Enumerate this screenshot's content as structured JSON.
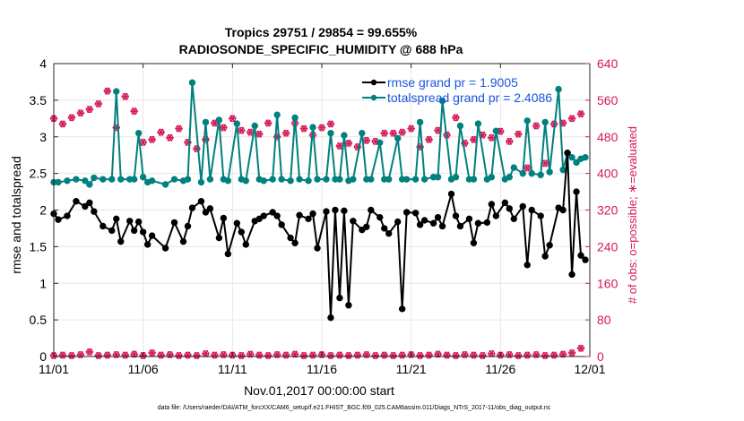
{
  "chart_data": {
    "type": "line",
    "title_line1": "Tropics 29751 / 29854 = 99.655%",
    "title_line2": "RADIOSONDE_SPECIFIC_HUMIDITY @ 688 hPa",
    "xlabel": "Nov.01,2017 00:00:00 start",
    "ylabel_left": "rmse and totalspread",
    "ylabel_right": "# of obs: o=possible; ∗=evaluated",
    "footer": "data file: /Users/raeder/DAI/ATM_forcXX/CAM6_setup/f.e21.FHIST_BGC.f09_025.CAM6assim.011/Diags_NTrS_2017-11/obs_diag_output.nc",
    "x_ticks": [
      "11/01",
      "11/06",
      "11/11",
      "11/16",
      "11/21",
      "11/26",
      "12/01"
    ],
    "y_left_ticks": [
      "0",
      "0.5",
      "1",
      "1.5",
      "2",
      "2.5",
      "3",
      "3.5",
      "4"
    ],
    "y_right_ticks": [
      "0",
      "80",
      "160",
      "240",
      "320",
      "400",
      "480",
      "560",
      "640"
    ],
    "ylim_left": [
      0,
      4
    ],
    "ylim_right": [
      0,
      640
    ],
    "xlim_days": [
      0,
      30
    ],
    "colors": {
      "rmse": "#000000",
      "spread": "#00807f",
      "obs": "#d6185a",
      "legend_text": "#1a56db"
    },
    "legend": [
      {
        "key": "rmse",
        "label": "rmse grand pr = 1.9005"
      },
      {
        "key": "spread",
        "label": "totalspread grand pr = 2.4086"
      }
    ],
    "series": [
      {
        "name": "rmse",
        "x": [
          0.0,
          0.25,
          0.75,
          1.25,
          1.75,
          2.0,
          2.25,
          2.75,
          3.25,
          3.5,
          3.75,
          4.25,
          4.5,
          4.75,
          5.0,
          5.25,
          5.5,
          6.25,
          6.75,
          7.25,
          7.5,
          7.75,
          8.25,
          8.5,
          8.75,
          9.25,
          9.5,
          9.75,
          10.25,
          10.5,
          10.75,
          11.25,
          11.5,
          11.75,
          12.25,
          12.5,
          12.75,
          13.25,
          13.5,
          13.75,
          14.25,
          14.5,
          14.75,
          15.25,
          15.5,
          15.75,
          16.0,
          16.25,
          16.5,
          16.75,
          17.25,
          17.5,
          17.75,
          18.25,
          18.5,
          18.75,
          19.25,
          19.5,
          19.75,
          20.25,
          20.5,
          20.75,
          21.25,
          21.5,
          21.75,
          22.25,
          22.5,
          22.75,
          23.25,
          23.5,
          23.75,
          24.25,
          24.5,
          24.75,
          25.25,
          25.5,
          25.75,
          26.25,
          26.5,
          26.75,
          27.25,
          27.5,
          27.75,
          28.25,
          28.5,
          28.75,
          29.0,
          29.25,
          29.5,
          29.75
        ],
        "values": [
          1.95,
          1.87,
          1.92,
          2.12,
          2.05,
          2.1,
          1.98,
          1.78,
          1.72,
          1.88,
          1.57,
          1.85,
          1.72,
          1.84,
          1.7,
          1.53,
          1.65,
          1.48,
          1.83,
          1.57,
          1.78,
          2.03,
          2.12,
          1.97,
          2.02,
          1.62,
          1.89,
          1.4,
          1.82,
          1.7,
          1.53,
          1.85,
          1.88,
          1.92,
          1.97,
          1.92,
          1.8,
          1.62,
          1.55,
          1.93,
          1.88,
          1.95,
          1.48,
          1.98,
          0.53,
          2.0,
          0.8,
          1.99,
          0.7,
          1.85,
          1.73,
          1.77,
          2.0,
          1.9,
          1.75,
          1.68,
          1.84,
          0.65,
          1.97,
          1.96,
          1.8,
          1.86,
          1.82,
          1.9,
          1.78,
          2.22,
          1.92,
          1.78,
          1.88,
          1.55,
          1.82,
          1.83,
          2.08,
          1.92,
          2.1,
          2.02,
          1.88,
          2.05,
          1.25,
          2.0,
          1.92,
          1.37,
          1.52,
          2.03,
          2.0,
          2.78,
          1.12,
          2.25,
          1.38,
          1.32
        ]
      },
      {
        "name": "totalspread",
        "x": [
          0.0,
          0.25,
          0.75,
          1.25,
          1.75,
          2.0,
          2.25,
          2.75,
          3.25,
          3.5,
          3.75,
          4.25,
          4.5,
          4.75,
          5.0,
          5.25,
          5.5,
          6.25,
          6.75,
          7.25,
          7.5,
          7.75,
          8.25,
          8.5,
          8.75,
          9.25,
          9.5,
          9.75,
          10.25,
          10.5,
          10.75,
          11.25,
          11.5,
          11.75,
          12.25,
          12.5,
          12.75,
          13.25,
          13.5,
          13.75,
          14.25,
          14.5,
          14.75,
          15.25,
          15.5,
          15.75,
          16.0,
          16.25,
          16.5,
          16.75,
          17.25,
          17.5,
          17.75,
          18.25,
          18.5,
          18.75,
          19.25,
          19.5,
          19.75,
          20.25,
          20.5,
          20.75,
          21.25,
          21.5,
          21.75,
          22.25,
          22.5,
          22.75,
          23.25,
          23.5,
          23.75,
          24.25,
          24.5,
          24.75,
          25.25,
          25.5,
          25.75,
          26.25,
          26.5,
          26.75,
          27.25,
          27.5,
          27.75,
          28.25,
          28.5,
          28.75,
          29.0,
          29.25,
          29.5,
          29.75
        ],
        "values": [
          2.38,
          2.38,
          2.4,
          2.42,
          2.4,
          2.35,
          2.44,
          2.42,
          2.42,
          3.62,
          2.42,
          2.42,
          2.42,
          3.05,
          2.45,
          2.38,
          2.4,
          2.35,
          2.42,
          2.4,
          2.42,
          3.74,
          2.38,
          3.2,
          2.42,
          3.23,
          2.42,
          2.4,
          3.18,
          2.42,
          2.4,
          3.15,
          2.42,
          2.4,
          2.42,
          3.3,
          2.42,
          2.4,
          3.26,
          2.42,
          2.4,
          3.13,
          2.42,
          2.42,
          3.05,
          2.42,
          2.42,
          3.02,
          2.4,
          2.42,
          3.05,
          2.42,
          2.42,
          2.92,
          2.42,
          2.42,
          2.98,
          2.42,
          2.42,
          2.42,
          3.2,
          2.42,
          2.45,
          2.45,
          3.49,
          2.42,
          2.45,
          3.15,
          2.42,
          2.42,
          3.18,
          2.42,
          2.45,
          3.08,
          2.42,
          2.45,
          2.58,
          2.5,
          3.22,
          2.5,
          2.48,
          3.2,
          2.52,
          3.65,
          2.55,
          2.78,
          2.72,
          2.65,
          2.7,
          2.72
        ]
      },
      {
        "name": "obs_possible",
        "x": [
          0.0,
          0.5,
          1.0,
          1.5,
          2.0,
          2.5,
          3.0,
          3.5,
          4.0,
          4.5,
          5.0,
          5.5,
          6.0,
          6.5,
          7.0,
          7.5,
          8.0,
          8.5,
          9.0,
          9.5,
          10.0,
          10.5,
          11.0,
          11.5,
          12.0,
          12.5,
          13.0,
          13.5,
          14.0,
          14.5,
          15.0,
          15.5,
          16.0,
          16.5,
          17.0,
          17.5,
          18.0,
          18.5,
          19.0,
          19.5,
          20.0,
          20.5,
          21.0,
          21.5,
          22.0,
          22.5,
          23.0,
          23.5,
          24.0,
          24.5,
          25.0,
          25.5,
          26.0,
          26.5,
          27.0,
          27.5,
          28.0,
          28.5,
          29.0,
          29.5
        ],
        "values": [
          520,
          508,
          522,
          532,
          540,
          552,
          580,
          500,
          568,
          536,
          468,
          474,
          490,
          478,
          498,
          468,
          454,
          474,
          510,
          500,
          520,
          494,
          490,
          486,
          510,
          480,
          488,
          510,
          498,
          484,
          500,
          508,
          460,
          466,
          458,
          472,
          470,
          488,
          488,
          490,
          498,
          458,
          474,
          494,
          484,
          522,
          466,
          474,
          484,
          478,
          492,
          470,
          486,
          412,
          504,
          422,
          508,
          510,
          520,
          530
        ]
      },
      {
        "name": "obs_evaluated",
        "x": [
          0.0,
          0.5,
          1.0,
          1.5,
          2.0,
          2.5,
          3.0,
          3.5,
          4.0,
          4.5,
          5.0,
          5.5,
          6.0,
          6.5,
          7.0,
          7.5,
          8.0,
          8.5,
          9.0,
          9.5,
          10.0,
          10.5,
          11.0,
          11.5,
          12.0,
          12.5,
          13.0,
          13.5,
          14.0,
          14.5,
          15.0,
          15.5,
          16.0,
          16.5,
          17.0,
          17.5,
          18.0,
          18.5,
          19.0,
          19.5,
          20.0,
          20.5,
          21.0,
          21.5,
          22.0,
          22.5,
          23.0,
          23.5,
          24.0,
          24.5,
          25.0,
          25.5,
          26.0,
          26.5,
          27.0,
          27.5,
          28.0,
          28.5,
          29.0,
          29.5
        ],
        "values": [
          520,
          508,
          522,
          532,
          540,
          552,
          580,
          500,
          568,
          536,
          468,
          474,
          490,
          478,
          498,
          468,
          454,
          474,
          510,
          500,
          520,
          494,
          490,
          486,
          510,
          480,
          488,
          510,
          498,
          484,
          500,
          508,
          460,
          466,
          458,
          472,
          470,
          488,
          488,
          490,
          498,
          458,
          474,
          494,
          484,
          522,
          466,
          474,
          484,
          478,
          492,
          470,
          486,
          412,
          504,
          422,
          508,
          510,
          520,
          530
        ]
      },
      {
        "name": "obs_bottom",
        "x": [
          0.0,
          0.5,
          1.0,
          1.5,
          2.0,
          2.5,
          3.0,
          3.5,
          4.0,
          4.5,
          5.0,
          5.5,
          6.0,
          6.5,
          7.0,
          7.5,
          8.0,
          8.5,
          9.0,
          9.5,
          10.0,
          10.5,
          11.0,
          11.5,
          12.0,
          12.5,
          13.0,
          13.5,
          14.0,
          14.5,
          15.0,
          15.5,
          16.0,
          16.5,
          17.0,
          17.5,
          18.0,
          18.5,
          19.0,
          19.5,
          20.0,
          20.5,
          21.0,
          21.5,
          22.0,
          22.5,
          23.0,
          23.5,
          24.0,
          24.5,
          25.0,
          25.5,
          26.0,
          26.5,
          27.0,
          27.5,
          28.0,
          28.5,
          29.0,
          29.5
        ],
        "values": [
          2,
          3,
          2,
          4,
          10,
          2,
          3,
          4,
          3,
          5,
          2,
          8,
          3,
          4,
          2,
          3,
          2,
          6,
          3,
          4,
          3,
          2,
          5,
          3,
          2,
          4,
          3,
          5,
          2,
          3,
          4,
          2,
          3,
          2,
          3,
          4,
          2,
          3,
          2,
          3,
          4,
          2,
          3,
          5,
          3,
          2,
          4,
          3,
          2,
          6,
          3,
          4,
          2,
          3,
          4,
          2,
          3,
          5,
          8,
          18
        ]
      }
    ]
  }
}
